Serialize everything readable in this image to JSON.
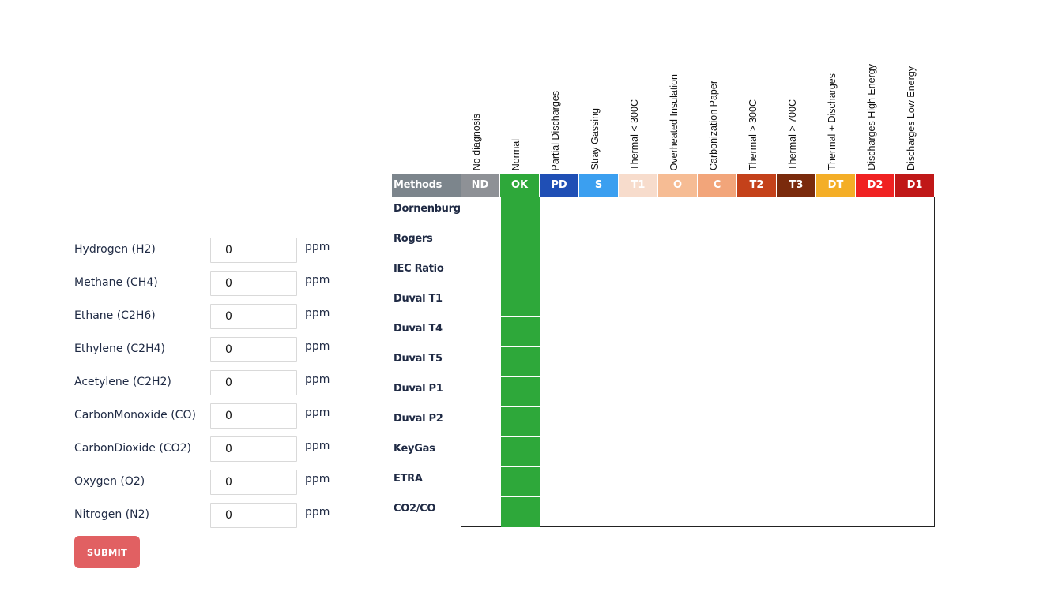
{
  "form": {
    "unit": "ppm",
    "submit_label": "SUBMIT",
    "gases": [
      {
        "label": "Hydrogen (H2)",
        "value": "0"
      },
      {
        "label": "Methane (CH4)",
        "value": "0"
      },
      {
        "label": "Ethane (C2H6)",
        "value": "0"
      },
      {
        "label": "Ethylene (C2H4)",
        "value": "0"
      },
      {
        "label": "Acetylene (C2H2)",
        "value": "0"
      },
      {
        "label": "CarbonMonoxide (CO)",
        "value": "0"
      },
      {
        "label": "CarbonDioxide (CO2)",
        "value": "0"
      },
      {
        "label": "Oxygen (O2)",
        "value": "0"
      },
      {
        "label": "Nitrogen (N2)",
        "value": "0"
      }
    ],
    "submit_color": "#e16062"
  },
  "matrix": {
    "methods_header": "Methods",
    "columns": [
      {
        "name": "No diagnosis",
        "code": "ND",
        "color": "#8e9196"
      },
      {
        "name": "Normal",
        "code": "OK",
        "color": "#2ea83a"
      },
      {
        "name": "Partial Discharges",
        "code": "PD",
        "color": "#1f4fb5"
      },
      {
        "name": "Stray Gassing",
        "code": "S",
        "color": "#3b9ff0"
      },
      {
        "name": "Thermal < 300C",
        "code": "T1",
        "color": "#f7dccc"
      },
      {
        "name": "Overheated Insulation",
        "code": "O",
        "color": "#f6bc94"
      },
      {
        "name": "Carbonization Paper",
        "code": "C",
        "color": "#f2a57a"
      },
      {
        "name": "Thermal > 300C",
        "code": "T2",
        "color": "#c4411a"
      },
      {
        "name": "Thermal > 700C",
        "code": "T3",
        "color": "#7a2a0c"
      },
      {
        "name": "Thermal + Discharges",
        "code": "DT",
        "color": "#f4ae27"
      },
      {
        "name": "Discharges High Energy",
        "code": "D2",
        "color": "#f02222"
      },
      {
        "name": "Discharges Low Energy",
        "code": "D1",
        "color": "#c01818"
      }
    ],
    "methods": [
      {
        "name": "Dornenburg",
        "result": "OK"
      },
      {
        "name": "Rogers",
        "result": "OK"
      },
      {
        "name": "IEC Ratio",
        "result": "OK"
      },
      {
        "name": "Duval T1",
        "result": "OK"
      },
      {
        "name": "Duval T4",
        "result": "OK"
      },
      {
        "name": "Duval T5",
        "result": "OK"
      },
      {
        "name": "Duval P1",
        "result": "OK"
      },
      {
        "name": "Duval P2",
        "result": "OK"
      },
      {
        "name": "KeyGas",
        "result": "OK"
      },
      {
        "name": "ETRA",
        "result": "OK"
      },
      {
        "name": "CO2/CO",
        "result": "OK"
      }
    ],
    "methods_header_color": "#7c858c"
  }
}
